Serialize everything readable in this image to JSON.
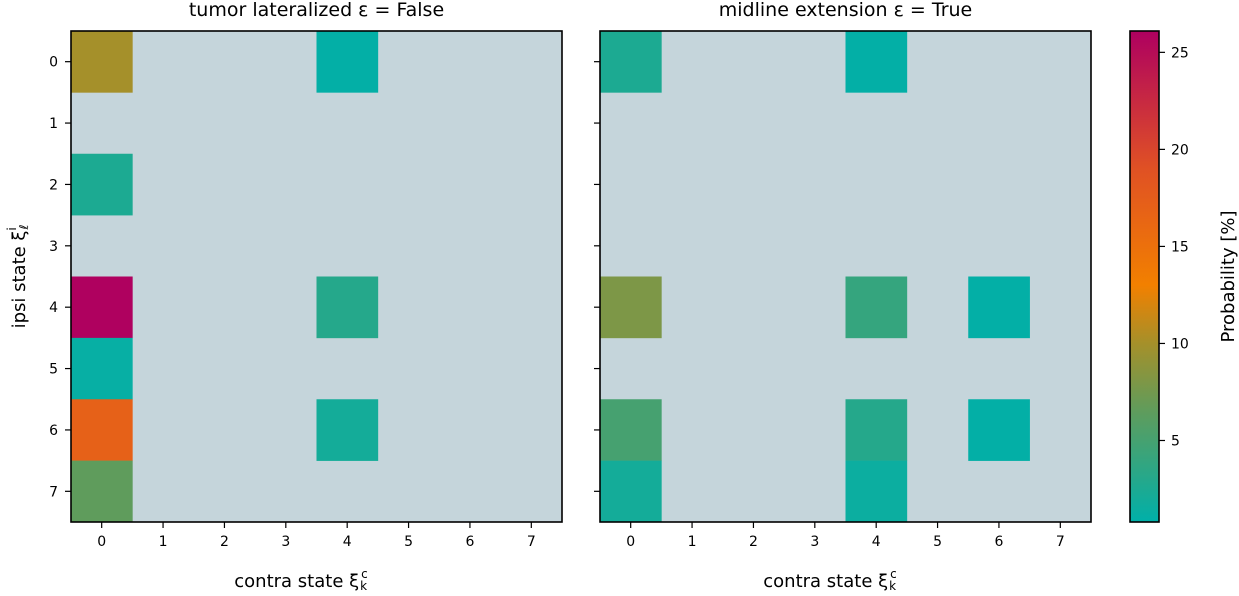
{
  "chart_data": {
    "type": "heatmap",
    "colorbar": {
      "label": "Probability [%]",
      "ticks": [
        "5",
        "10",
        "15",
        "20",
        "25"
      ],
      "tick_values": [
        5,
        10,
        15,
        20,
        25
      ],
      "range": [
        0.8,
        26.1
      ],
      "colormap_stops": [
        {
          "value": 0.8,
          "color": "#00b0a9"
        },
        {
          "value": 6.5,
          "color": "#5f9c5c"
        },
        {
          "value": 10,
          "color": "#a5902a"
        },
        {
          "value": 13,
          "color": "#f28000"
        },
        {
          "value": 19,
          "color": "#e05124"
        },
        {
          "value": 26.1,
          "color": "#ae0060"
        }
      ],
      "empty_color": "#c5d5db"
    },
    "panels": [
      {
        "title": "tumor lateralized ε = False",
        "xlabel": "contra state ξ",
        "ylabel": "ipsi state ξ",
        "x_ticks": [
          "0",
          "1",
          "2",
          "3",
          "4",
          "5",
          "6",
          "7"
        ],
        "y_ticks": [
          "0",
          "1",
          "2",
          "3",
          "4",
          "5",
          "6",
          "7"
        ],
        "cells": [
          {
            "ipsi": 0,
            "contra": 0,
            "value": 10
          },
          {
            "ipsi": 0,
            "contra": 4,
            "value": 1
          },
          {
            "ipsi": 2,
            "contra": 0,
            "value": 2.5
          },
          {
            "ipsi": 4,
            "contra": 0,
            "value": 26
          },
          {
            "ipsi": 4,
            "contra": 4,
            "value": 3
          },
          {
            "ipsi": 5,
            "contra": 0,
            "value": 1.2
          },
          {
            "ipsi": 6,
            "contra": 0,
            "value": 17
          },
          {
            "ipsi": 6,
            "contra": 4,
            "value": 2
          },
          {
            "ipsi": 7,
            "contra": 0,
            "value": 6.5
          }
        ]
      },
      {
        "title": "midline extension ε = True",
        "xlabel": "contra state ξ",
        "ylabel": "",
        "x_ticks": [
          "0",
          "1",
          "2",
          "3",
          "4",
          "5",
          "6",
          "7"
        ],
        "y_ticks": [
          "",
          "",
          "",
          "",
          "",
          "",
          "",
          ""
        ],
        "cells": [
          {
            "ipsi": 0,
            "contra": 0,
            "value": 2.5
          },
          {
            "ipsi": 0,
            "contra": 4,
            "value": 1
          },
          {
            "ipsi": 4,
            "contra": 0,
            "value": 8
          },
          {
            "ipsi": 4,
            "contra": 4,
            "value": 4
          },
          {
            "ipsi": 4,
            "contra": 6,
            "value": 1
          },
          {
            "ipsi": 6,
            "contra": 0,
            "value": 5
          },
          {
            "ipsi": 6,
            "contra": 4,
            "value": 3
          },
          {
            "ipsi": 6,
            "contra": 6,
            "value": 1
          },
          {
            "ipsi": 7,
            "contra": 0,
            "value": 2
          },
          {
            "ipsi": 7,
            "contra": 4,
            "value": 1.5
          }
        ]
      }
    ]
  }
}
